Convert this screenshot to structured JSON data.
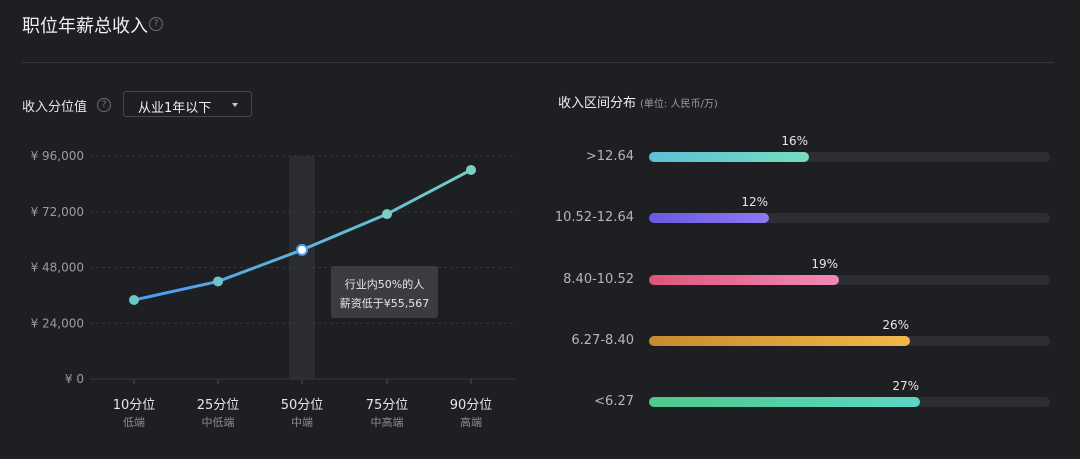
{
  "header": {
    "title": "职位年薪总收入",
    "help_icon": "?"
  },
  "percentile_panel": {
    "label": "收入分位值",
    "help_icon": "?",
    "dropdown_value": "从业1年以下",
    "tooltip_line1": "行业内50%的人",
    "tooltip_line2": "薪资低于¥55,567"
  },
  "distribution_panel": {
    "title": "收入区间分布",
    "unit": "(单位: 人民币/万)"
  },
  "chart_data": [
    {
      "type": "line",
      "categories": [
        "10分位",
        "25分位",
        "50分位",
        "75分位",
        "90分位"
      ],
      "sublabels": [
        "低端",
        "中低端",
        "中端",
        "中高端",
        "高端"
      ],
      "values": [
        34000,
        42000,
        55567,
        71000,
        90000
      ],
      "ylim": [
        0,
        96000
      ],
      "yticks": [
        "¥ 0",
        "¥ 24,000",
        "¥ 48,000",
        "¥ 72,000",
        "¥ 96,000"
      ],
      "highlight_index": 2,
      "grid": true,
      "colors": {
        "start": "#4a9cf0",
        "end": "#72cdc3"
      }
    },
    {
      "type": "bar",
      "orientation": "horizontal",
      "categories": [
        ">12.64",
        "10.52-12.64",
        "8.40-10.52",
        "6.27-8.40",
        "<6.27"
      ],
      "values": [
        16,
        12,
        19,
        26,
        27
      ],
      "labels": [
        "16%",
        "12%",
        "19%",
        "26%",
        "27%"
      ],
      "max": 40,
      "colors": [
        [
          "#5bc0d4",
          "#78dcc0"
        ],
        [
          "#6a5ae0",
          "#8c78f2"
        ],
        [
          "#e0557a",
          "#f08ab8"
        ],
        [
          "#c98a2e",
          "#f2b84a"
        ],
        [
          "#4ec98a",
          "#5cd6c4"
        ]
      ]
    }
  ]
}
